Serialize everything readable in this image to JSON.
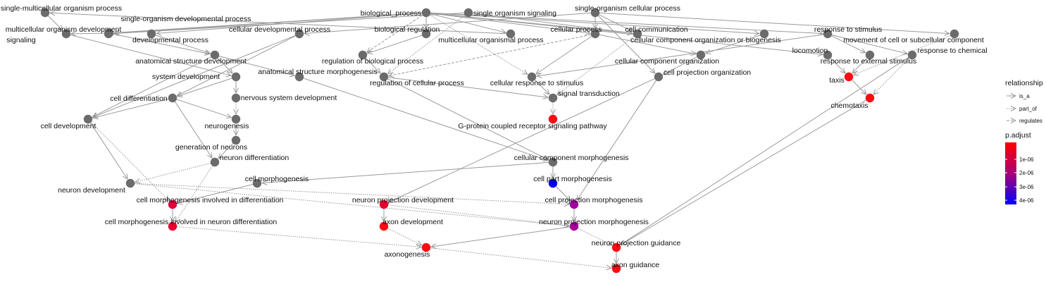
{
  "colors": {
    "node_default": "#6b6b6b",
    "edge": "#9a9a9a",
    "padjust_low": "#ff0000",
    "padjust_high": "#0000ff"
  },
  "nodes": [
    {
      "id": "smop",
      "label": "single-multicellular organism process",
      "color": "#6b6b6b"
    },
    {
      "id": "sodp",
      "label": "single-organism developmental process",
      "color": "#6b6b6b"
    },
    {
      "id": "mod",
      "label": "multicellular organism development",
      "color": "#6b6b6b"
    },
    {
      "id": "sig",
      "label": "signaling",
      "color": "#6b6b6b"
    },
    {
      "id": "dp",
      "label": "developmental process",
      "color": "#6b6b6b"
    },
    {
      "id": "cdp",
      "label": "cellular developmental process",
      "color": "#6b6b6b"
    },
    {
      "id": "bp",
      "label": "biological_process",
      "color": "#6b6b6b"
    },
    {
      "id": "sos",
      "label": "single organism signaling",
      "color": "#6b6b6b"
    },
    {
      "id": "breg",
      "label": "biological regulation",
      "color": "#6b6b6b"
    },
    {
      "id": "mop",
      "label": "multicellular organismal process",
      "color": "#6b6b6b"
    },
    {
      "id": "socp",
      "label": "single-organism cellular process",
      "color": "#6b6b6b"
    },
    {
      "id": "cp",
      "label": "cellular process",
      "color": "#6b6b6b"
    },
    {
      "id": "cc",
      "label": "cell communication",
      "color": "#6b6b6b"
    },
    {
      "id": "ccob",
      "label": "cellular component organization or biogenesis",
      "color": "#6b6b6b"
    },
    {
      "id": "rts",
      "label": "response to stimulus",
      "color": "#6b6b6b"
    },
    {
      "id": "mcsc",
      "label": "movement of cell or subcellular component",
      "color": "#6b6b6b"
    },
    {
      "id": "loc",
      "label": "locomotion",
      "color": "#6b6b6b"
    },
    {
      "id": "rtc",
      "label": "response to chemical",
      "color": "#6b6b6b"
    },
    {
      "id": "rtes",
      "label": "response to external stimulus",
      "color": "#6b6b6b"
    },
    {
      "id": "asd",
      "label": "anatomical structure development",
      "color": "#6b6b6b"
    },
    {
      "id": "rbp",
      "label": "regulation of biological process",
      "color": "#6b6b6b"
    },
    {
      "id": "cco",
      "label": "cellular component organization",
      "color": "#6b6b6b"
    },
    {
      "id": "sd",
      "label": "system development",
      "color": "#6b6b6b"
    },
    {
      "id": "asm",
      "label": "anatomical structure morphogenesis",
      "color": "#6b6b6b"
    },
    {
      "id": "rcp",
      "label": "regulation of cellular process",
      "color": "#6b6b6b"
    },
    {
      "id": "crs",
      "label": "cellular response to stimulus",
      "color": "#6b6b6b"
    },
    {
      "id": "cpo",
      "label": "cell projection organization",
      "color": "#6b6b6b"
    },
    {
      "id": "taxis",
      "label": "taxis",
      "color": "#ff0a12"
    },
    {
      "id": "chemo",
      "label": "chemotaxis",
      "color": "#ff0a12"
    },
    {
      "id": "cdiff",
      "label": "cell differentiation",
      "color": "#6b6b6b"
    },
    {
      "id": "nsd",
      "label": "nervous system development",
      "color": "#6b6b6b"
    },
    {
      "id": "st",
      "label": "signal transduction",
      "color": "#6b6b6b"
    },
    {
      "id": "cdev",
      "label": "cell development",
      "color": "#6b6b6b"
    },
    {
      "id": "neurog",
      "label": "neurogenesis",
      "color": "#6b6b6b"
    },
    {
      "id": "gpcr",
      "label": "G-protein coupled receptor signaling pathway",
      "color": "#ff0a12"
    },
    {
      "id": "gon",
      "label": "generation of neurons",
      "color": "#6b6b6b"
    },
    {
      "id": "ndiff",
      "label": "neuron differentiation",
      "color": "#6b6b6b"
    },
    {
      "id": "ccm",
      "label": "cellular component morphogenesis",
      "color": "#6b6b6b"
    },
    {
      "id": "cmorph",
      "label": "cell morphogenesis",
      "color": "#6b6b6b"
    },
    {
      "id": "cpm",
      "label": "cell part morphogenesis",
      "color": "#0000ff"
    },
    {
      "id": "ndev",
      "label": "neuron development",
      "color": "#6b6b6b"
    },
    {
      "id": "cmid",
      "label": "cell morphogenesis involved in differentiation",
      "color": "#e0003a"
    },
    {
      "id": "npd",
      "label": "neuron projection development",
      "color": "#e8002e"
    },
    {
      "id": "cprojm",
      "label": "cell projection morphogenesis",
      "color": "#a000a0"
    },
    {
      "id": "cmind",
      "label": "cell morphogenesis involved in neuron differentiation",
      "color": "#e8002e"
    },
    {
      "id": "axd",
      "label": "axon development",
      "color": "#ff0a12"
    },
    {
      "id": "npm",
      "label": "neuron projection morphogenesis",
      "color": "#a8009a"
    },
    {
      "id": "npg",
      "label": "neuron projection guidance",
      "color": "#ff0a12"
    },
    {
      "id": "axg",
      "label": "axonogenesis",
      "color": "#ff0a12"
    },
    {
      "id": "axguid",
      "label": "axon guidance",
      "color": "#ff0a12"
    }
  ],
  "edges": [
    {
      "from": "bp",
      "to": "sodp",
      "type": "is_a"
    },
    {
      "from": "bp",
      "to": "breg",
      "type": "is_a"
    },
    {
      "from": "bp",
      "to": "mop",
      "type": "is_a"
    },
    {
      "from": "bp",
      "to": "cp",
      "type": "is_a"
    },
    {
      "from": "bp",
      "to": "dp",
      "type": "is_a"
    },
    {
      "from": "bp",
      "to": "sig",
      "type": "is_a"
    },
    {
      "from": "bp",
      "to": "rts",
      "type": "is_a"
    },
    {
      "from": "bp",
      "to": "loc",
      "type": "is_a"
    },
    {
      "from": "bp",
      "to": "ccob",
      "type": "is_a"
    },
    {
      "from": "bp",
      "to": "cc",
      "type": "is_a"
    },
    {
      "from": "bp",
      "to": "rbp",
      "type": "regulates"
    },
    {
      "from": "bp",
      "to": "crs",
      "type": "part_of"
    },
    {
      "from": "smop",
      "to": "mod",
      "type": "is_a"
    },
    {
      "from": "sodp",
      "to": "mod",
      "type": "is_a"
    },
    {
      "from": "mop",
      "to": "smop",
      "type": "is_a"
    },
    {
      "from": "sos",
      "to": "sig",
      "type": "is_a"
    },
    {
      "from": "sos",
      "to": "cc",
      "type": "is_a"
    },
    {
      "from": "sos",
      "to": "rcp",
      "type": "part_of"
    },
    {
      "from": "socp",
      "to": "cp",
      "type": "is_a"
    },
    {
      "from": "socp",
      "to": "cc",
      "type": "is_a"
    },
    {
      "from": "socp",
      "to": "mcsc",
      "type": "is_a"
    },
    {
      "from": "socp",
      "to": "cdp",
      "type": "is_a"
    },
    {
      "from": "socp",
      "to": "cpo",
      "type": "is_a"
    },
    {
      "from": "breg",
      "to": "rbp",
      "type": "is_a"
    },
    {
      "from": "rbp",
      "to": "rcp",
      "type": "is_a"
    },
    {
      "from": "cp",
      "to": "rcp",
      "type": "regulates"
    },
    {
      "from": "cp",
      "to": "crs",
      "type": "is_a"
    },
    {
      "from": "cp",
      "to": "cco",
      "type": "is_a"
    },
    {
      "from": "cc",
      "to": "st",
      "type": "part_of"
    },
    {
      "from": "ccob",
      "to": "cco",
      "type": "is_a"
    },
    {
      "from": "rts",
      "to": "rtes",
      "type": "is_a"
    },
    {
      "from": "rts",
      "to": "rtc",
      "type": "is_a"
    },
    {
      "from": "rts",
      "to": "crs",
      "type": "is_a"
    },
    {
      "from": "mcsc",
      "to": "taxis",
      "type": "part_of"
    },
    {
      "from": "loc",
      "to": "taxis",
      "type": "is_a"
    },
    {
      "from": "rtes",
      "to": "taxis",
      "type": "is_a"
    },
    {
      "from": "rtc",
      "to": "chemo",
      "type": "part_of"
    },
    {
      "from": "taxis",
      "to": "chemo",
      "type": "is_a"
    },
    {
      "from": "dp",
      "to": "asd",
      "type": "is_a"
    },
    {
      "from": "sodp",
      "to": "asd",
      "type": "is_a"
    },
    {
      "from": "mod",
      "to": "sd",
      "type": "is_a"
    },
    {
      "from": "asd",
      "to": "sd",
      "type": "is_a"
    },
    {
      "from": "asd",
      "to": "asm",
      "type": "is_a"
    },
    {
      "from": "asd",
      "to": "cdev",
      "type": "is_a"
    },
    {
      "from": "cdp",
      "to": "cdiff",
      "type": "is_a"
    },
    {
      "from": "cdp",
      "to": "cdev",
      "type": "is_a"
    },
    {
      "from": "sd",
      "to": "nsd",
      "type": "is_a"
    },
    {
      "from": "sd",
      "to": "cdiff",
      "type": "is_a"
    },
    {
      "from": "cdiff",
      "to": "cdev",
      "type": "is_a"
    },
    {
      "from": "cdiff",
      "to": "neurog",
      "type": "is_a"
    },
    {
      "from": "cdiff",
      "to": "ndiff",
      "type": "is_a"
    },
    {
      "from": "nsd",
      "to": "neurog",
      "type": "part_of"
    },
    {
      "from": "neurog",
      "to": "gon",
      "type": "is_a"
    },
    {
      "from": "gon",
      "to": "ndiff",
      "type": "is_a"
    },
    {
      "from": "crs",
      "to": "st",
      "type": "is_a"
    },
    {
      "from": "rcp",
      "to": "st",
      "type": "is_a"
    },
    {
      "from": "st",
      "to": "gpcr",
      "type": "part_of"
    },
    {
      "from": "rcp",
      "to": "ccm",
      "type": "is_a"
    },
    {
      "from": "asm",
      "to": "ccm",
      "type": "is_a"
    },
    {
      "from": "ccm",
      "to": "cmorph",
      "type": "is_a"
    },
    {
      "from": "ccm",
      "to": "cpm",
      "type": "is_a"
    },
    {
      "from": "cco",
      "to": "cpo",
      "type": "is_a"
    },
    {
      "from": "cpo",
      "to": "cprojm",
      "type": "is_a"
    },
    {
      "from": "cpo",
      "to": "npd",
      "type": "is_a"
    },
    {
      "from": "cdev",
      "to": "ndev",
      "type": "is_a"
    },
    {
      "from": "cdev",
      "to": "cmid",
      "type": "part_of"
    },
    {
      "from": "ndiff",
      "to": "ndev",
      "type": "part_of"
    },
    {
      "from": "ndiff",
      "to": "cmind",
      "type": "part_of"
    },
    {
      "from": "cmorph",
      "to": "cmid",
      "type": "is_a"
    },
    {
      "from": "cmid",
      "to": "cmind",
      "type": "is_a"
    },
    {
      "from": "cpm",
      "to": "cprojm",
      "type": "is_a"
    },
    {
      "from": "ndev",
      "to": "cprojm",
      "type": "part_of"
    },
    {
      "from": "npd",
      "to": "axd",
      "type": "is_a"
    },
    {
      "from": "npd",
      "to": "npm",
      "type": "part_of"
    },
    {
      "from": "cprojm",
      "to": "npm",
      "type": "is_a"
    },
    {
      "from": "ndev",
      "to": "npm",
      "type": "part_of"
    },
    {
      "from": "npm",
      "to": "axg",
      "type": "is_a"
    },
    {
      "from": "npm",
      "to": "npg",
      "type": "part_of"
    },
    {
      "from": "axd",
      "to": "axg",
      "type": "part_of"
    },
    {
      "from": "cmind",
      "to": "axg",
      "type": "part_of"
    },
    {
      "from": "chemo",
      "to": "npg",
      "type": "is_a"
    },
    {
      "from": "rtc",
      "to": "npg",
      "type": "is_a"
    },
    {
      "from": "npg",
      "to": "axguid",
      "type": "is_a"
    },
    {
      "from": "axg",
      "to": "axguid",
      "type": "part_of"
    }
  ],
  "legend": {
    "relationship": {
      "title": "relationship",
      "items": [
        {
          "label": "is_a",
          "type": "is_a"
        },
        {
          "label": "part_of",
          "type": "part_of"
        },
        {
          "label": "regulates",
          "type": "regulates"
        }
      ]
    },
    "padjust": {
      "title": "p.adjust",
      "ticks": [
        "1e-06",
        "2e-06",
        "3e-06",
        "4e-06"
      ]
    }
  }
}
